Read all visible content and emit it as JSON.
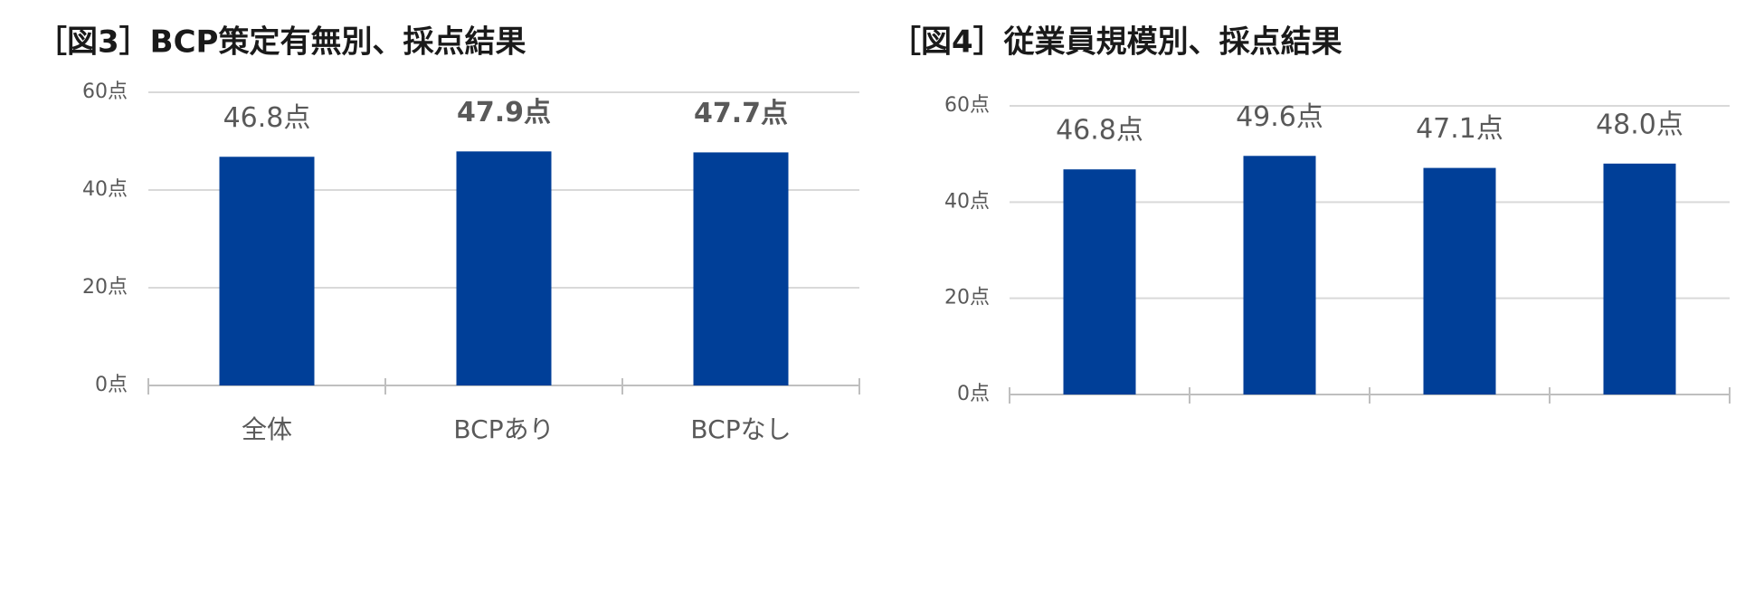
{
  "chart_data": [
    {
      "type": "bar",
      "title": "［図3］BCP策定有無別、採点結果",
      "categories": [
        "全体",
        "BCPあり",
        "BCPなし"
      ],
      "values": [
        46.8,
        47.9,
        47.7
      ],
      "value_labels": [
        "46.8点",
        "47.9点",
        "47.7点"
      ],
      "value_label_bold": [
        false,
        true,
        true
      ],
      "color": "#003f98",
      "ylim": [
        0,
        60
      ],
      "yticks": [
        {
          "value": 0,
          "label": "0点"
        },
        {
          "value": 20,
          "label": "20点"
        },
        {
          "value": 40,
          "label": "40点"
        },
        {
          "value": 60,
          "label": "60点"
        }
      ],
      "grid": true
    },
    {
      "type": "bar",
      "title": "［図4］従業員規模別、採点結果",
      "categories": [
        null,
        null,
        null,
        null
      ],
      "values": [
        46.8,
        49.6,
        47.1,
        48
      ],
      "value_labels": [
        "46.8点",
        "49.6点",
        "47.1点",
        "48.0点"
      ],
      "value_label_bold": [
        false,
        false,
        false,
        false
      ],
      "color": "#003f98",
      "ylim": [
        0,
        60
      ],
      "yticks": [
        {
          "value": 0,
          "label": "0点"
        },
        {
          "value": 20,
          "label": "20点"
        },
        {
          "value": 40,
          "label": "40点"
        },
        {
          "value": 60,
          "label": "60点"
        }
      ],
      "grid": true
    }
  ]
}
